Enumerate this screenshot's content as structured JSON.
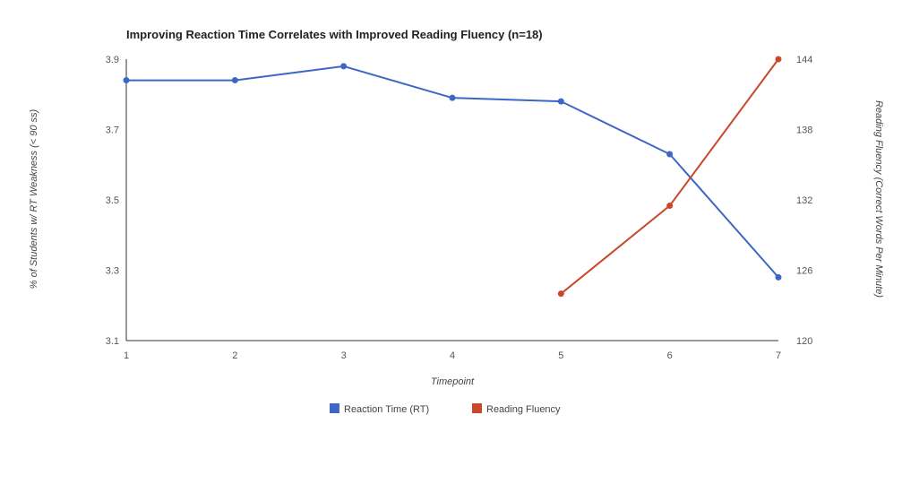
{
  "chart_data": {
    "type": "line",
    "title": "Improving Reaction Time Correlates with Improved Reading Fluency (n=18)",
    "xlabel": "Timepoint",
    "ylabel_left": "% of Students w/ RT Weakness (< 90 ss)",
    "ylabel_right": "Reading Fluency (Correct Words Per Minute)",
    "x": [
      1,
      2,
      3,
      4,
      5,
      6,
      7
    ],
    "x_tick_labels": [
      "1",
      "2",
      "3",
      "4",
      "5",
      "6",
      "7"
    ],
    "y_left_ticks": [
      "3.1",
      "3.3",
      "3.5",
      "3.7",
      "3.9"
    ],
    "y_right_ticks": [
      "120",
      "126",
      "132",
      "138",
      "144"
    ],
    "ylim_left": [
      3.1,
      3.9
    ],
    "ylim_right": [
      120,
      144
    ],
    "grid": false,
    "legend_position": "bottom",
    "series": [
      {
        "name": "Reaction Time (RT)",
        "axis": "left",
        "color": "#3d67c6",
        "x": [
          1,
          2,
          3,
          4,
          5,
          6,
          7
        ],
        "values": [
          3.84,
          3.84,
          3.88,
          3.79,
          3.78,
          3.63,
          3.28
        ]
      },
      {
        "name": "Reading Fluency",
        "axis": "right",
        "color": "#c9472b",
        "x": [
          5,
          6,
          7
        ],
        "values": [
          124,
          131.5,
          144
        ]
      }
    ]
  }
}
